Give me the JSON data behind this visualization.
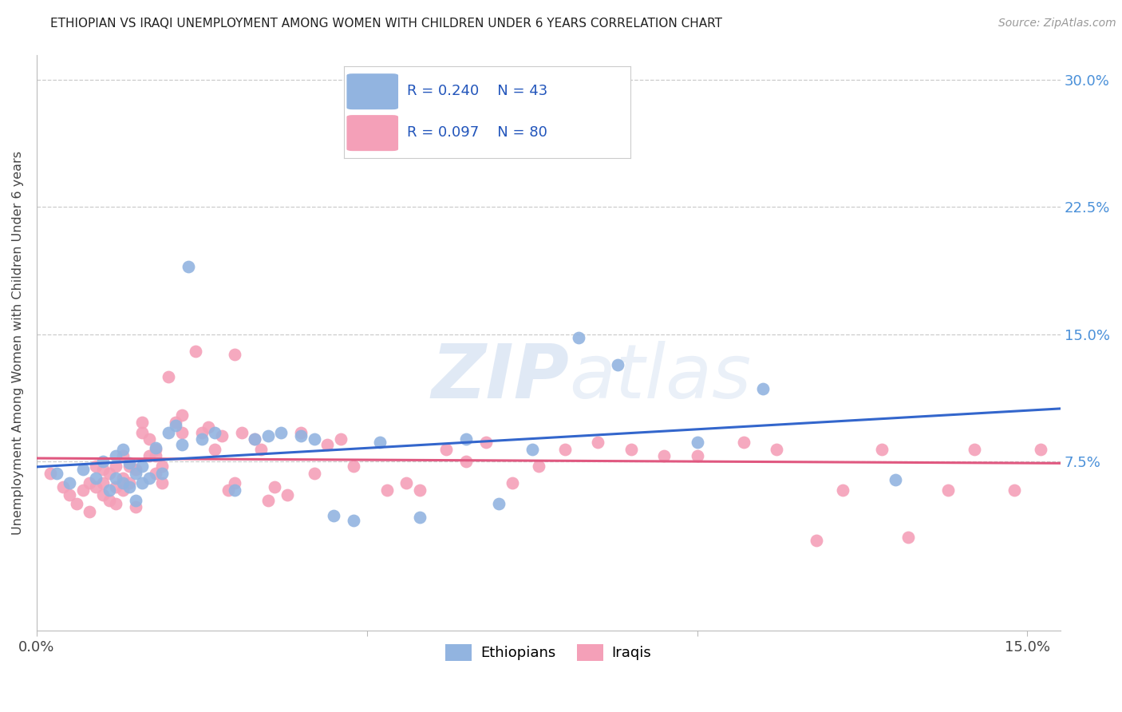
{
  "title": "ETHIOPIAN VS IRAQI UNEMPLOYMENT AMONG WOMEN WITH CHILDREN UNDER 6 YEARS CORRELATION CHART",
  "source": "Source: ZipAtlas.com",
  "ylabel": "Unemployment Among Women with Children Under 6 years",
  "legend_R_ethiopian": "R = 0.240",
  "legend_N_ethiopian": "N = 43",
  "legend_R_iraqi": "R = 0.097",
  "legend_N_iraqi": "N = 80",
  "color_ethiopian": "#92b4e0",
  "color_iraqi": "#f4a0b8",
  "line_color_ethiopian": "#3366cc",
  "line_color_iraqi": "#e05880",
  "watermark_zip": "ZIP",
  "watermark_atlas": "atlas",
  "xlim": [
    0.0,
    0.155
  ],
  "ylim": [
    -0.025,
    0.315
  ],
  "ytick_vals": [
    0.0,
    0.075,
    0.15,
    0.225,
    0.3
  ],
  "ytick_labels": [
    "",
    "7.5%",
    "15.0%",
    "22.5%",
    "30.0%"
  ],
  "xtick_vals": [
    0.0,
    0.05,
    0.1,
    0.15
  ],
  "xtick_labels": [
    "0.0%",
    "",
    "",
    "15.0%"
  ],
  "ethiopian_x": [
    0.003,
    0.005,
    0.007,
    0.009,
    0.01,
    0.011,
    0.012,
    0.012,
    0.013,
    0.013,
    0.014,
    0.014,
    0.015,
    0.015,
    0.016,
    0.016,
    0.017,
    0.018,
    0.019,
    0.02,
    0.021,
    0.022,
    0.023,
    0.025,
    0.027,
    0.03,
    0.033,
    0.035,
    0.037,
    0.04,
    0.042,
    0.045,
    0.048,
    0.052,
    0.058,
    0.065,
    0.07,
    0.075,
    0.082,
    0.088,
    0.1,
    0.11,
    0.13
  ],
  "ethiopian_y": [
    0.068,
    0.062,
    0.07,
    0.065,
    0.075,
    0.058,
    0.065,
    0.078,
    0.062,
    0.082,
    0.06,
    0.074,
    0.052,
    0.068,
    0.062,
    0.072,
    0.065,
    0.083,
    0.068,
    0.092,
    0.096,
    0.085,
    0.19,
    0.088,
    0.092,
    0.058,
    0.088,
    0.09,
    0.092,
    0.09,
    0.088,
    0.043,
    0.04,
    0.086,
    0.042,
    0.088,
    0.05,
    0.082,
    0.148,
    0.132,
    0.086,
    0.118,
    0.064
  ],
  "iraqi_x": [
    0.002,
    0.004,
    0.005,
    0.006,
    0.007,
    0.008,
    0.008,
    0.009,
    0.009,
    0.01,
    0.01,
    0.01,
    0.011,
    0.011,
    0.012,
    0.012,
    0.012,
    0.013,
    0.013,
    0.013,
    0.014,
    0.014,
    0.015,
    0.015,
    0.016,
    0.016,
    0.017,
    0.017,
    0.018,
    0.018,
    0.018,
    0.019,
    0.019,
    0.02,
    0.021,
    0.022,
    0.022,
    0.024,
    0.025,
    0.026,
    0.027,
    0.028,
    0.029,
    0.03,
    0.03,
    0.031,
    0.033,
    0.034,
    0.035,
    0.036,
    0.038,
    0.04,
    0.042,
    0.044,
    0.046,
    0.048,
    0.05,
    0.053,
    0.056,
    0.058,
    0.062,
    0.065,
    0.068,
    0.072,
    0.076,
    0.08,
    0.085,
    0.09,
    0.095,
    0.1,
    0.107,
    0.112,
    0.118,
    0.122,
    0.128,
    0.132,
    0.138,
    0.142,
    0.148,
    0.152
  ],
  "iraqi_y": [
    0.068,
    0.06,
    0.055,
    0.05,
    0.058,
    0.062,
    0.045,
    0.06,
    0.072,
    0.055,
    0.062,
    0.07,
    0.052,
    0.068,
    0.05,
    0.06,
    0.072,
    0.058,
    0.065,
    0.078,
    0.062,
    0.072,
    0.048,
    0.07,
    0.092,
    0.098,
    0.078,
    0.088,
    0.068,
    0.078,
    0.082,
    0.062,
    0.072,
    0.125,
    0.098,
    0.092,
    0.102,
    0.14,
    0.092,
    0.095,
    0.082,
    0.09,
    0.058,
    0.138,
    0.062,
    0.092,
    0.088,
    0.082,
    0.052,
    0.06,
    0.055,
    0.092,
    0.068,
    0.085,
    0.088,
    0.072,
    0.268,
    0.058,
    0.062,
    0.058,
    0.082,
    0.075,
    0.086,
    0.062,
    0.072,
    0.082,
    0.086,
    0.082,
    0.078,
    0.078,
    0.086,
    0.082,
    0.028,
    0.058,
    0.082,
    0.03,
    0.058,
    0.082,
    0.058,
    0.082
  ]
}
